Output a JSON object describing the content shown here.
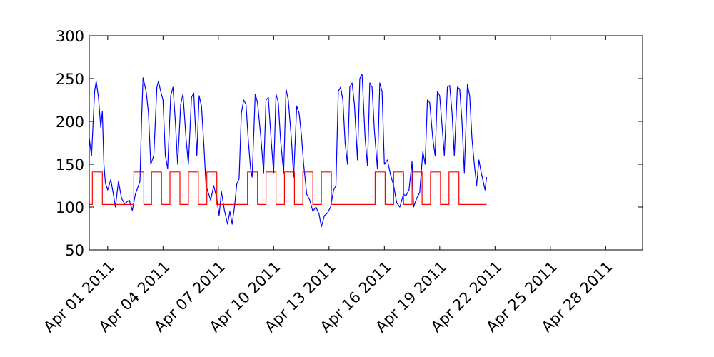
{
  "chart_data": {
    "type": "line",
    "title": "",
    "xlabel": "",
    "ylabel": "",
    "x_range": [
      "2011-03-31",
      "2011-04-30"
    ],
    "ylim": [
      50,
      300
    ],
    "y_ticks": [
      50,
      100,
      150,
      200,
      250,
      300
    ],
    "x_tick_dates": [
      "2011-04-01",
      "2011-04-04",
      "2011-04-07",
      "2011-04-10",
      "2011-04-13",
      "2011-04-16",
      "2011-04-19",
      "2011-04-22",
      "2011-04-25",
      "2011-04-28"
    ],
    "x_tick_labels": [
      "Apr 01 2011",
      "Apr 04 2011",
      "Apr 07 2011",
      "Apr 10 2011",
      "Apr 13 2011",
      "Apr 16 2011",
      "Apr 19 2011",
      "Apr 22 2011",
      "Apr 25 2011",
      "Apr 28 2011"
    ],
    "grid": false,
    "legend": false,
    "series": [
      {
        "color": "#0000ff",
        "points": [
          [
            "2011-03-31 00:00",
            180
          ],
          [
            "2011-03-31 03:00",
            160
          ],
          [
            "2011-03-31 07:00",
            235
          ],
          [
            "2011-03-31 09:00",
            247
          ],
          [
            "2011-03-31 12:00",
            228
          ],
          [
            "2011-03-31 15:00",
            193
          ],
          [
            "2011-03-31 17:00",
            212
          ],
          [
            "2011-03-31 19:00",
            150
          ],
          [
            "2011-03-31 21:00",
            128
          ],
          [
            "2011-04-01 00:00",
            120
          ],
          [
            "2011-04-01 04:00",
            132
          ],
          [
            "2011-04-01 08:00",
            112
          ],
          [
            "2011-04-01 10:00",
            100
          ],
          [
            "2011-04-01 14:00",
            130
          ],
          [
            "2011-04-01 18:00",
            110
          ],
          [
            "2011-04-01 22:00",
            104
          ],
          [
            "2011-04-02 04:00",
            108
          ],
          [
            "2011-04-02 08:00",
            96
          ],
          [
            "2011-04-02 12:00",
            115
          ],
          [
            "2011-04-02 18:00",
            130
          ],
          [
            "2011-04-02 20:00",
            200
          ],
          [
            "2011-04-02 22:00",
            251
          ],
          [
            "2011-04-03 02:00",
            235
          ],
          [
            "2011-04-03 05:00",
            210
          ],
          [
            "2011-04-03 08:00",
            150
          ],
          [
            "2011-04-03 12:00",
            160
          ],
          [
            "2011-04-03 16:00",
            240
          ],
          [
            "2011-04-03 18:00",
            247
          ],
          [
            "2011-04-03 21:00",
            235
          ],
          [
            "2011-04-04 00:00",
            225
          ],
          [
            "2011-04-04 03:00",
            160
          ],
          [
            "2011-04-04 06:00",
            145
          ],
          [
            "2011-04-04 10:00",
            230
          ],
          [
            "2011-04-04 13:00",
            240
          ],
          [
            "2011-04-04 16:00",
            200
          ],
          [
            "2011-04-04 19:00",
            150
          ],
          [
            "2011-04-04 23:00",
            220
          ],
          [
            "2011-04-05 02:00",
            232
          ],
          [
            "2011-04-05 06:00",
            180
          ],
          [
            "2011-04-05 09:00",
            150
          ],
          [
            "2011-04-05 13:00",
            228
          ],
          [
            "2011-04-05 16:00",
            233
          ],
          [
            "2011-04-05 20:00",
            160
          ],
          [
            "2011-04-05 23:00",
            230
          ],
          [
            "2011-04-06 02:00",
            218
          ],
          [
            "2011-04-06 05:00",
            175
          ],
          [
            "2011-04-06 08:00",
            125
          ],
          [
            "2011-04-06 14:00",
            108
          ],
          [
            "2011-04-06 18:00",
            125
          ],
          [
            "2011-04-06 22:00",
            110
          ],
          [
            "2011-04-07 01:00",
            90
          ],
          [
            "2011-04-07 04:00",
            118
          ],
          [
            "2011-04-07 08:00",
            96
          ],
          [
            "2011-04-07 12:00",
            80
          ],
          [
            "2011-04-07 15:00",
            95
          ],
          [
            "2011-04-07 18:00",
            80
          ],
          [
            "2011-04-07 21:00",
            100
          ],
          [
            "2011-04-08 00:00",
            127
          ],
          [
            "2011-04-08 03:00",
            133
          ],
          [
            "2011-04-08 06:00",
            210
          ],
          [
            "2011-04-08 09:00",
            225
          ],
          [
            "2011-04-08 12:00",
            220
          ],
          [
            "2011-04-08 15:00",
            178
          ],
          [
            "2011-04-08 18:00",
            145
          ],
          [
            "2011-04-08 20:00",
            135
          ],
          [
            "2011-04-09 00:00",
            232
          ],
          [
            "2011-04-09 03:00",
            222
          ],
          [
            "2011-04-09 07:00",
            185
          ],
          [
            "2011-04-09 11:00",
            140
          ],
          [
            "2011-04-09 14:00",
            225
          ],
          [
            "2011-04-09 17:00",
            228
          ],
          [
            "2011-04-09 21:00",
            175
          ],
          [
            "2011-04-10 00:00",
            140
          ],
          [
            "2011-04-10 03:00",
            232
          ],
          [
            "2011-04-10 06:00",
            222
          ],
          [
            "2011-04-10 09:00",
            178
          ],
          [
            "2011-04-10 13:00",
            140
          ],
          [
            "2011-04-10 16:00",
            238
          ],
          [
            "2011-04-10 19:00",
            225
          ],
          [
            "2011-04-10 23:00",
            180
          ],
          [
            "2011-04-11 02:00",
            135
          ],
          [
            "2011-04-11 06:00",
            218
          ],
          [
            "2011-04-11 09:00",
            210
          ],
          [
            "2011-04-11 12:00",
            185
          ],
          [
            "2011-04-11 15:00",
            150
          ],
          [
            "2011-04-11 19:00",
            115
          ],
          [
            "2011-04-11 23:00",
            108
          ],
          [
            "2011-04-12 03:00",
            95
          ],
          [
            "2011-04-12 07:00",
            100
          ],
          [
            "2011-04-12 11:00",
            92
          ],
          [
            "2011-04-12 14:00",
            77
          ],
          [
            "2011-04-12 18:00",
            90
          ],
          [
            "2011-04-12 22:00",
            93
          ],
          [
            "2011-04-13 02:00",
            100
          ],
          [
            "2011-04-13 06:00",
            120
          ],
          [
            "2011-04-13 09:00",
            125
          ],
          [
            "2011-04-13 12:00",
            235
          ],
          [
            "2011-04-13 15:00",
            240
          ],
          [
            "2011-04-13 18:00",
            225
          ],
          [
            "2011-04-13 21:00",
            175
          ],
          [
            "2011-04-14 00:00",
            150
          ],
          [
            "2011-04-14 03:00",
            240
          ],
          [
            "2011-04-14 06:00",
            245
          ],
          [
            "2011-04-14 09:00",
            220
          ],
          [
            "2011-04-14 13:00",
            155
          ],
          [
            "2011-04-14 16:00",
            250
          ],
          [
            "2011-04-14 19:00",
            255
          ],
          [
            "2011-04-14 23:00",
            180
          ],
          [
            "2011-04-15 02:00",
            148
          ],
          [
            "2011-04-15 05:00",
            245
          ],
          [
            "2011-04-15 08:00",
            240
          ],
          [
            "2011-04-15 11:00",
            190
          ],
          [
            "2011-04-15 15:00",
            145
          ],
          [
            "2011-04-15 18:00",
            245
          ],
          [
            "2011-04-15 21:00",
            235
          ],
          [
            "2011-04-16 00:00",
            150
          ],
          [
            "2011-04-16 04:00",
            155
          ],
          [
            "2011-04-16 08:00",
            138
          ],
          [
            "2011-04-16 12:00",
            125
          ],
          [
            "2011-04-16 16:00",
            105
          ],
          [
            "2011-04-16 20:00",
            100
          ],
          [
            "2011-04-17 01:00",
            115
          ],
          [
            "2011-04-17 04:00",
            113
          ],
          [
            "2011-04-17 08:00",
            120
          ],
          [
            "2011-04-17 12:00",
            153
          ],
          [
            "2011-04-17 14:00",
            100
          ],
          [
            "2011-04-17 18:00",
            110
          ],
          [
            "2011-04-17 22:00",
            117
          ],
          [
            "2011-04-18 02:00",
            165
          ],
          [
            "2011-04-18 05:00",
            150
          ],
          [
            "2011-04-18 08:00",
            225
          ],
          [
            "2011-04-18 11:00",
            222
          ],
          [
            "2011-04-18 15:00",
            180
          ],
          [
            "2011-04-18 18:00",
            160
          ],
          [
            "2011-04-18 21:00",
            235
          ],
          [
            "2011-04-19 00:00",
            230
          ],
          [
            "2011-04-19 03:00",
            195
          ],
          [
            "2011-04-19 06:00",
            160
          ],
          [
            "2011-04-19 10:00",
            240
          ],
          [
            "2011-04-19 13:00",
            242
          ],
          [
            "2011-04-19 16:00",
            210
          ],
          [
            "2011-04-19 19:00",
            160
          ],
          [
            "2011-04-19 23:00",
            240
          ],
          [
            "2011-04-20 02:00",
            238
          ],
          [
            "2011-04-20 05:00",
            200
          ],
          [
            "2011-04-20 08:00",
            140
          ],
          [
            "2011-04-20 12:00",
            243
          ],
          [
            "2011-04-20 15:00",
            230
          ],
          [
            "2011-04-20 18:00",
            180
          ],
          [
            "2011-04-20 21:00",
            150
          ],
          [
            "2011-04-21 00:00",
            125
          ],
          [
            "2011-04-21 03:00",
            155
          ],
          [
            "2011-04-21 06:00",
            140
          ],
          [
            "2011-04-21 09:00",
            128
          ],
          [
            "2011-04-21 11:00",
            120
          ],
          [
            "2011-04-21 13:00",
            135
          ]
        ]
      },
      {
        "color": "#ff0000",
        "points": [
          [
            "2011-03-31 00:00",
            103
          ],
          [
            "2011-03-31 04:00",
            103
          ],
          [
            "2011-03-31 04:00",
            141
          ],
          [
            "2011-03-31 17:00",
            141
          ],
          [
            "2011-03-31 17:00",
            103
          ],
          [
            "2011-04-02 10:00",
            103
          ],
          [
            "2011-04-02 10:00",
            141
          ],
          [
            "2011-04-02 23:00",
            141
          ],
          [
            "2011-04-02 23:00",
            103
          ],
          [
            "2011-04-03 09:00",
            103
          ],
          [
            "2011-04-03 09:00",
            141
          ],
          [
            "2011-04-03 22:00",
            141
          ],
          [
            "2011-04-03 22:00",
            103
          ],
          [
            "2011-04-04 09:00",
            103
          ],
          [
            "2011-04-04 09:00",
            141
          ],
          [
            "2011-04-04 22:00",
            141
          ],
          [
            "2011-04-04 22:00",
            103
          ],
          [
            "2011-04-05 09:00",
            103
          ],
          [
            "2011-04-05 09:00",
            141
          ],
          [
            "2011-04-05 22:00",
            141
          ],
          [
            "2011-04-05 22:00",
            103
          ],
          [
            "2011-04-06 09:00",
            103
          ],
          [
            "2011-04-06 09:00",
            141
          ],
          [
            "2011-04-06 22:00",
            141
          ],
          [
            "2011-04-06 22:00",
            103
          ],
          [
            "2011-04-08 14:00",
            103
          ],
          [
            "2011-04-08 14:00",
            141
          ],
          [
            "2011-04-09 03:00",
            141
          ],
          [
            "2011-04-09 03:00",
            103
          ],
          [
            "2011-04-09 14:00",
            103
          ],
          [
            "2011-04-09 14:00",
            141
          ],
          [
            "2011-04-10 03:00",
            141
          ],
          [
            "2011-04-10 03:00",
            103
          ],
          [
            "2011-04-10 14:00",
            103
          ],
          [
            "2011-04-10 14:00",
            141
          ],
          [
            "2011-04-11 03:00",
            141
          ],
          [
            "2011-04-11 03:00",
            103
          ],
          [
            "2011-04-11 14:00",
            103
          ],
          [
            "2011-04-11 14:00",
            141
          ],
          [
            "2011-04-12 03:00",
            141
          ],
          [
            "2011-04-12 03:00",
            103
          ],
          [
            "2011-04-12 14:00",
            103
          ],
          [
            "2011-04-12 14:00",
            141
          ],
          [
            "2011-04-13 03:00",
            141
          ],
          [
            "2011-04-13 03:00",
            103
          ],
          [
            "2011-04-15 12:00",
            103
          ],
          [
            "2011-04-15 12:00",
            141
          ],
          [
            "2011-04-16 01:00",
            141
          ],
          [
            "2011-04-16 01:00",
            103
          ],
          [
            "2011-04-16 12:00",
            103
          ],
          [
            "2011-04-16 12:00",
            141
          ],
          [
            "2011-04-17 01:00",
            141
          ],
          [
            "2011-04-17 01:00",
            103
          ],
          [
            "2011-04-17 12:00",
            103
          ],
          [
            "2011-04-17 12:00",
            141
          ],
          [
            "2011-04-18 01:00",
            141
          ],
          [
            "2011-04-18 01:00",
            103
          ],
          [
            "2011-04-18 12:00",
            103
          ],
          [
            "2011-04-18 12:00",
            141
          ],
          [
            "2011-04-19 01:00",
            141
          ],
          [
            "2011-04-19 01:00",
            103
          ],
          [
            "2011-04-19 12:00",
            103
          ],
          [
            "2011-04-19 12:00",
            141
          ],
          [
            "2011-04-20 01:00",
            141
          ],
          [
            "2011-04-20 01:00",
            103
          ],
          [
            "2011-04-21 13:00",
            103
          ]
        ]
      }
    ]
  }
}
